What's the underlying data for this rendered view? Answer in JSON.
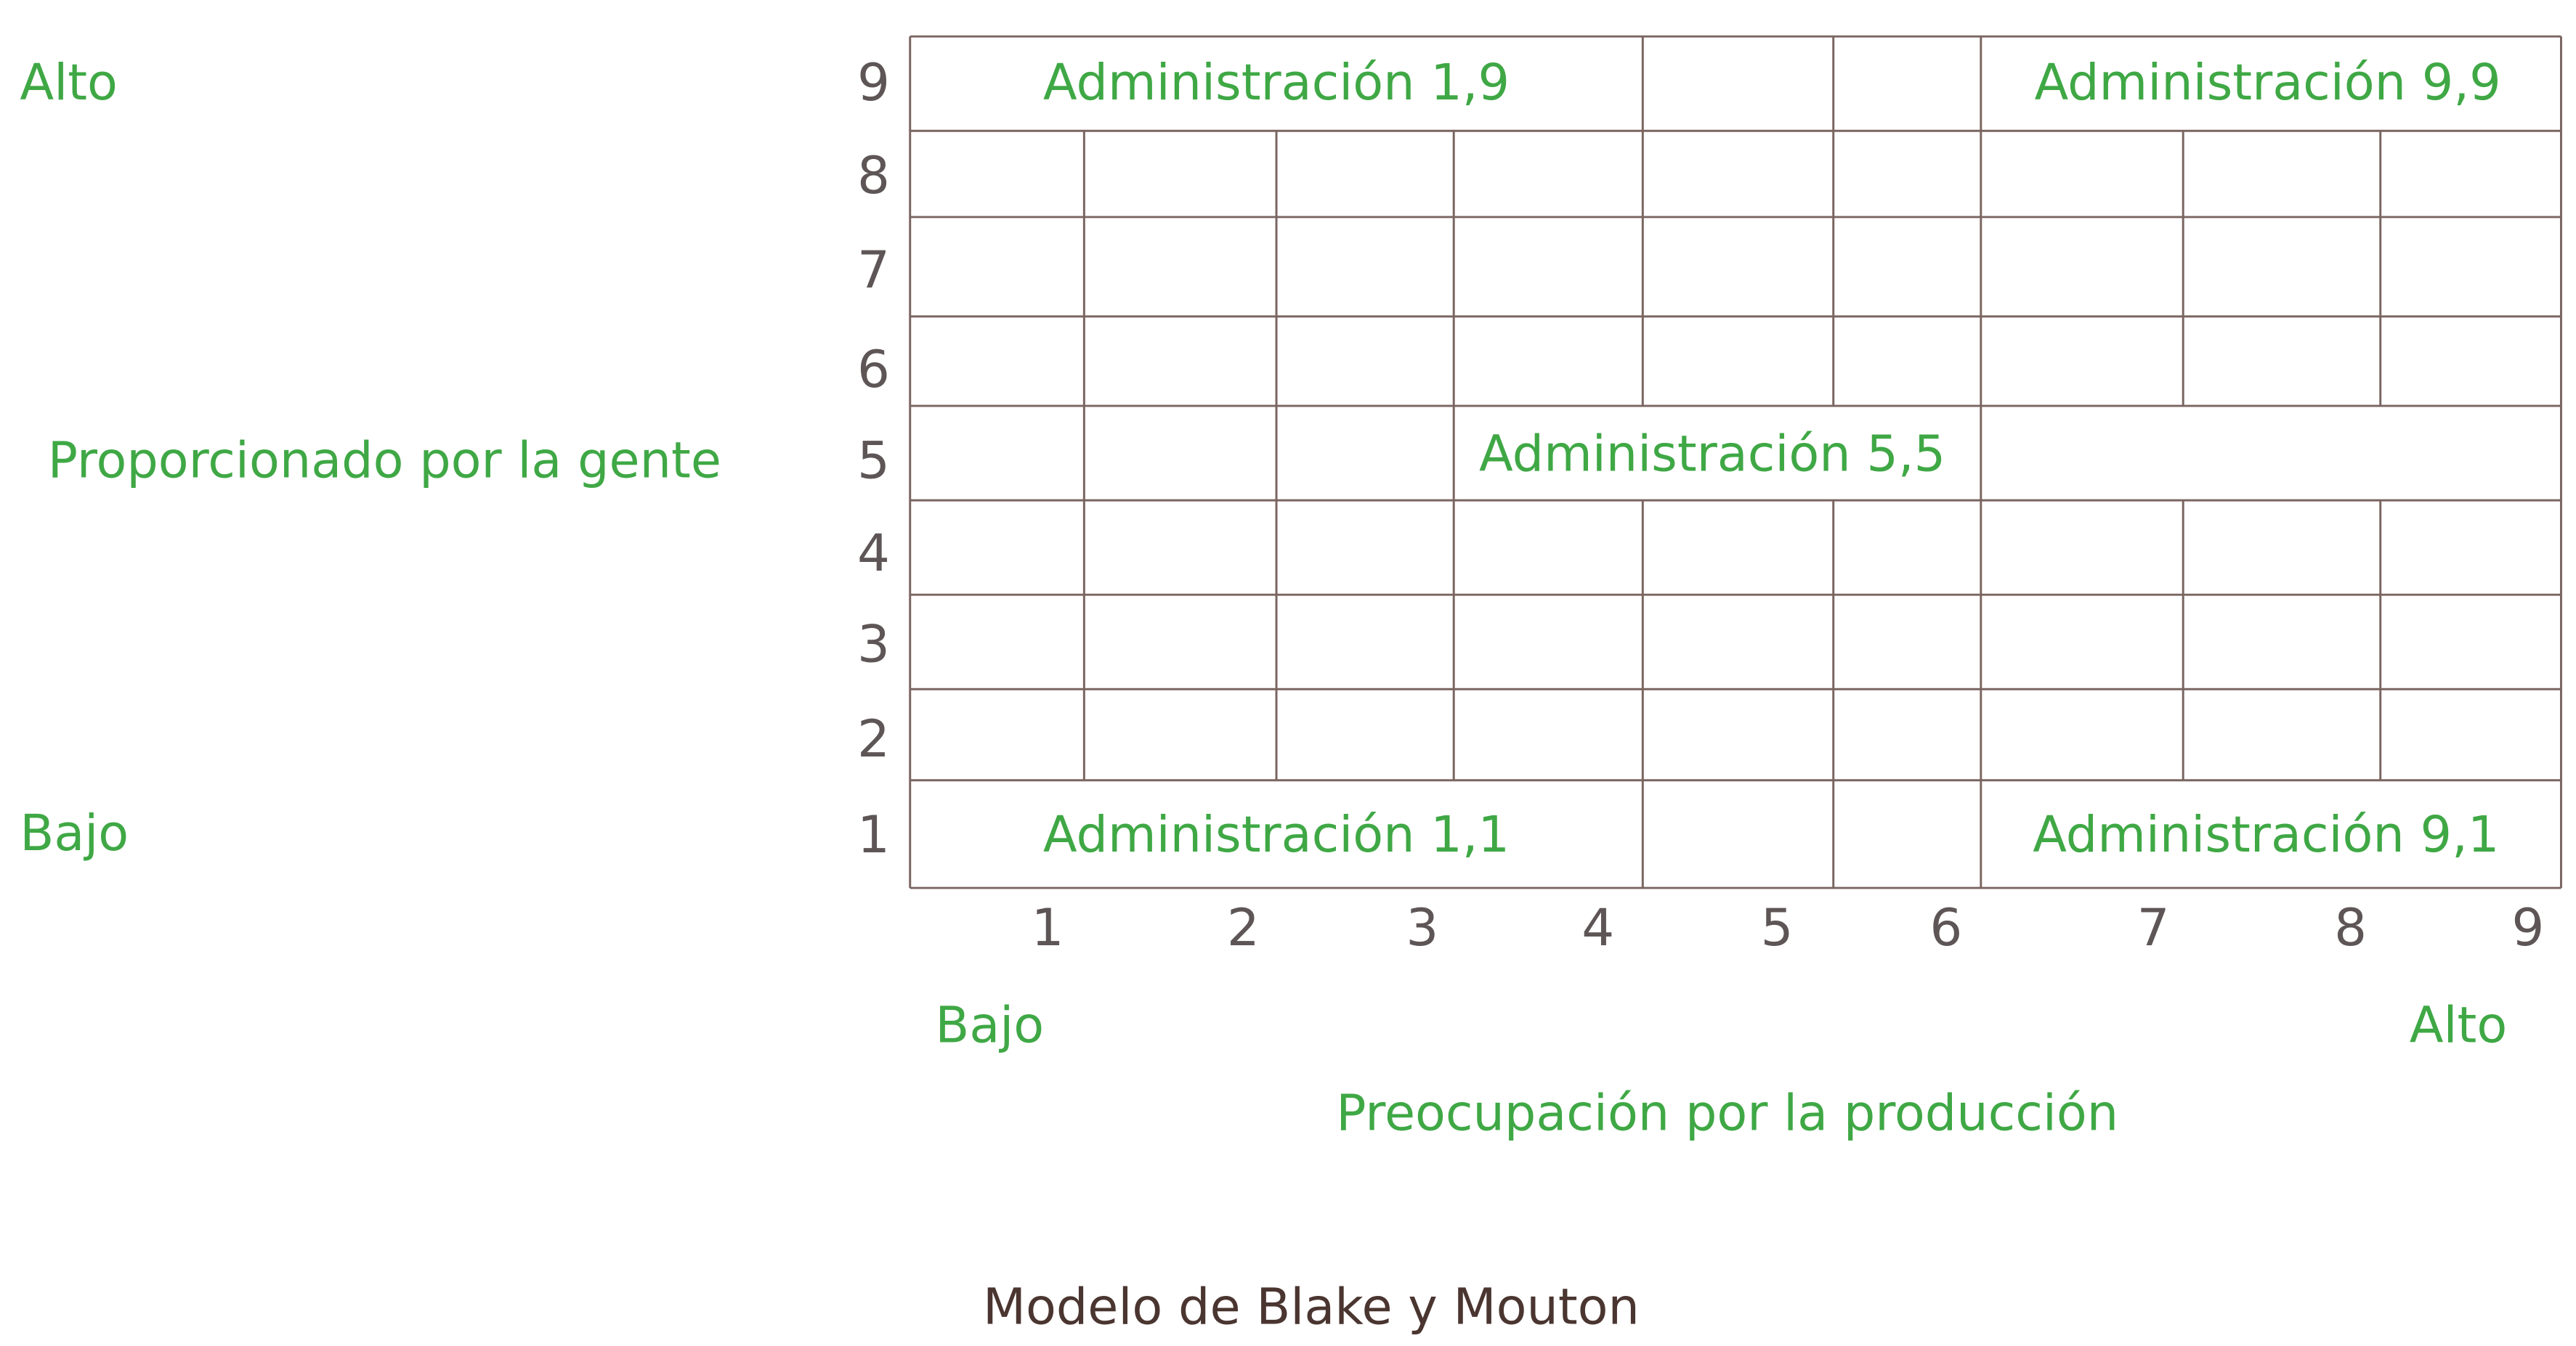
{
  "y_axis": {
    "high": "Alto",
    "title": "Proporcionado por la gente",
    "low": "Bajo",
    "ticks": [
      9,
      8,
      7,
      6,
      5,
      4,
      3,
      2,
      1
    ]
  },
  "x_axis": {
    "ticks": [
      1,
      2,
      3,
      4,
      5,
      6,
      7,
      8,
      9
    ],
    "low": "Bajo",
    "high": "Alto",
    "title": "Preocupación por la producción"
  },
  "cells": [
    {
      "label": "Administración 1,9"
    },
    {
      "label": "Administración 9,9"
    },
    {
      "label": "Administración 5,5"
    },
    {
      "label": "Administración 1,1"
    },
    {
      "label": "Administración 9,1"
    }
  ],
  "caption": "Modelo de Blake y Mouton"
}
